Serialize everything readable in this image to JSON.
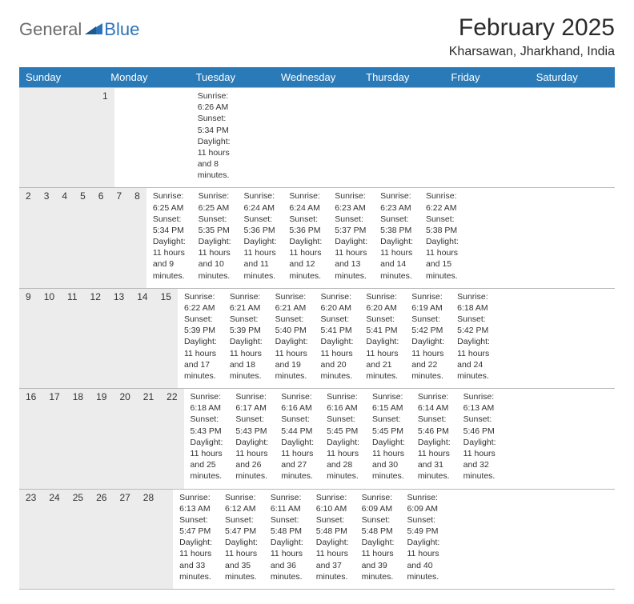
{
  "logo": {
    "text1": "General",
    "text2": "Blue"
  },
  "title": "February 2025",
  "location": "Kharsawan, Jharkhand, India",
  "colors": {
    "header_bg": "#2a7ab8",
    "header_text": "#ffffff",
    "daynum_bg": "#ececec",
    "border": "#b8b8b8",
    "logo_gray": "#6b6b6b",
    "logo_blue": "#2a73b8"
  },
  "weekdays": [
    "Sunday",
    "Monday",
    "Tuesday",
    "Wednesday",
    "Thursday",
    "Friday",
    "Saturday"
  ],
  "weeks": [
    [
      {
        "n": "",
        "sr": "",
        "ss": "",
        "dl": ""
      },
      {
        "n": "",
        "sr": "",
        "ss": "",
        "dl": ""
      },
      {
        "n": "",
        "sr": "",
        "ss": "",
        "dl": ""
      },
      {
        "n": "",
        "sr": "",
        "ss": "",
        "dl": ""
      },
      {
        "n": "",
        "sr": "",
        "ss": "",
        "dl": ""
      },
      {
        "n": "",
        "sr": "",
        "ss": "",
        "dl": ""
      },
      {
        "n": "1",
        "sr": "Sunrise: 6:26 AM",
        "ss": "Sunset: 5:34 PM",
        "dl": "Daylight: 11 hours and 8 minutes."
      }
    ],
    [
      {
        "n": "2",
        "sr": "Sunrise: 6:25 AM",
        "ss": "Sunset: 5:34 PM",
        "dl": "Daylight: 11 hours and 9 minutes."
      },
      {
        "n": "3",
        "sr": "Sunrise: 6:25 AM",
        "ss": "Sunset: 5:35 PM",
        "dl": "Daylight: 11 hours and 10 minutes."
      },
      {
        "n": "4",
        "sr": "Sunrise: 6:24 AM",
        "ss": "Sunset: 5:36 PM",
        "dl": "Daylight: 11 hours and 11 minutes."
      },
      {
        "n": "5",
        "sr": "Sunrise: 6:24 AM",
        "ss": "Sunset: 5:36 PM",
        "dl": "Daylight: 11 hours and 12 minutes."
      },
      {
        "n": "6",
        "sr": "Sunrise: 6:23 AM",
        "ss": "Sunset: 5:37 PM",
        "dl": "Daylight: 11 hours and 13 minutes."
      },
      {
        "n": "7",
        "sr": "Sunrise: 6:23 AM",
        "ss": "Sunset: 5:38 PM",
        "dl": "Daylight: 11 hours and 14 minutes."
      },
      {
        "n": "8",
        "sr": "Sunrise: 6:22 AM",
        "ss": "Sunset: 5:38 PM",
        "dl": "Daylight: 11 hours and 15 minutes."
      }
    ],
    [
      {
        "n": "9",
        "sr": "Sunrise: 6:22 AM",
        "ss": "Sunset: 5:39 PM",
        "dl": "Daylight: 11 hours and 17 minutes."
      },
      {
        "n": "10",
        "sr": "Sunrise: 6:21 AM",
        "ss": "Sunset: 5:39 PM",
        "dl": "Daylight: 11 hours and 18 minutes."
      },
      {
        "n": "11",
        "sr": "Sunrise: 6:21 AM",
        "ss": "Sunset: 5:40 PM",
        "dl": "Daylight: 11 hours and 19 minutes."
      },
      {
        "n": "12",
        "sr": "Sunrise: 6:20 AM",
        "ss": "Sunset: 5:41 PM",
        "dl": "Daylight: 11 hours and 20 minutes."
      },
      {
        "n": "13",
        "sr": "Sunrise: 6:20 AM",
        "ss": "Sunset: 5:41 PM",
        "dl": "Daylight: 11 hours and 21 minutes."
      },
      {
        "n": "14",
        "sr": "Sunrise: 6:19 AM",
        "ss": "Sunset: 5:42 PM",
        "dl": "Daylight: 11 hours and 22 minutes."
      },
      {
        "n": "15",
        "sr": "Sunrise: 6:18 AM",
        "ss": "Sunset: 5:42 PM",
        "dl": "Daylight: 11 hours and 24 minutes."
      }
    ],
    [
      {
        "n": "16",
        "sr": "Sunrise: 6:18 AM",
        "ss": "Sunset: 5:43 PM",
        "dl": "Daylight: 11 hours and 25 minutes."
      },
      {
        "n": "17",
        "sr": "Sunrise: 6:17 AM",
        "ss": "Sunset: 5:43 PM",
        "dl": "Daylight: 11 hours and 26 minutes."
      },
      {
        "n": "18",
        "sr": "Sunrise: 6:16 AM",
        "ss": "Sunset: 5:44 PM",
        "dl": "Daylight: 11 hours and 27 minutes."
      },
      {
        "n": "19",
        "sr": "Sunrise: 6:16 AM",
        "ss": "Sunset: 5:45 PM",
        "dl": "Daylight: 11 hours and 28 minutes."
      },
      {
        "n": "20",
        "sr": "Sunrise: 6:15 AM",
        "ss": "Sunset: 5:45 PM",
        "dl": "Daylight: 11 hours and 30 minutes."
      },
      {
        "n": "21",
        "sr": "Sunrise: 6:14 AM",
        "ss": "Sunset: 5:46 PM",
        "dl": "Daylight: 11 hours and 31 minutes."
      },
      {
        "n": "22",
        "sr": "Sunrise: 6:13 AM",
        "ss": "Sunset: 5:46 PM",
        "dl": "Daylight: 11 hours and 32 minutes."
      }
    ],
    [
      {
        "n": "23",
        "sr": "Sunrise: 6:13 AM",
        "ss": "Sunset: 5:47 PM",
        "dl": "Daylight: 11 hours and 33 minutes."
      },
      {
        "n": "24",
        "sr": "Sunrise: 6:12 AM",
        "ss": "Sunset: 5:47 PM",
        "dl": "Daylight: 11 hours and 35 minutes."
      },
      {
        "n": "25",
        "sr": "Sunrise: 6:11 AM",
        "ss": "Sunset: 5:48 PM",
        "dl": "Daylight: 11 hours and 36 minutes."
      },
      {
        "n": "26",
        "sr": "Sunrise: 6:10 AM",
        "ss": "Sunset: 5:48 PM",
        "dl": "Daylight: 11 hours and 37 minutes."
      },
      {
        "n": "27",
        "sr": "Sunrise: 6:09 AM",
        "ss": "Sunset: 5:48 PM",
        "dl": "Daylight: 11 hours and 39 minutes."
      },
      {
        "n": "28",
        "sr": "Sunrise: 6:09 AM",
        "ss": "Sunset: 5:49 PM",
        "dl": "Daylight: 11 hours and 40 minutes."
      },
      {
        "n": "",
        "sr": "",
        "ss": "",
        "dl": ""
      }
    ]
  ]
}
